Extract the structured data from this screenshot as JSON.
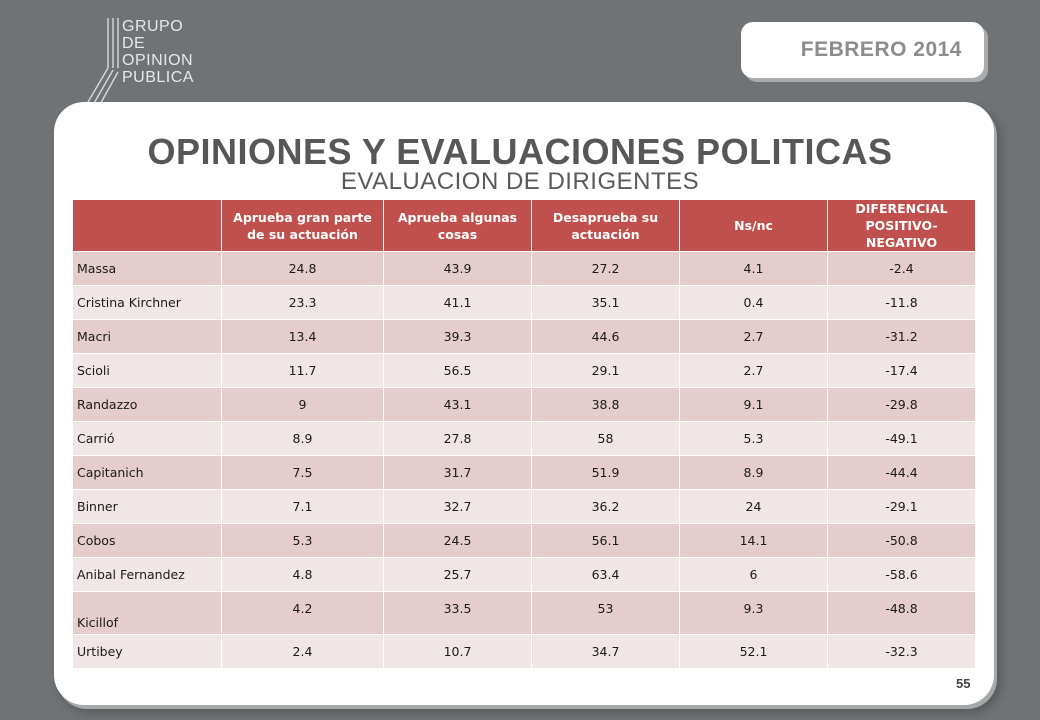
{
  "logo": {
    "lines": [
      "GRUPO",
      "DE",
      "OPINION",
      "PUBLICA"
    ]
  },
  "date_badge": "FEBRERO 2014",
  "title": "OPINIONES Y EVALUACIONES POLITICAS",
  "subtitle": "EVALUACION DE DIRIGENTES",
  "page_number": "55",
  "table": {
    "headers": [
      "",
      "Aprueba gran parte de su actuación",
      "Aprueba algunas cosas",
      "Desaprueba su actuación",
      "Ns/nc",
      "DIFERENCIAL POSITIVO-NEGATIVO"
    ],
    "rows": [
      [
        "Massa",
        "24.8",
        "43.9",
        "27.2",
        "4.1",
        "-2.4"
      ],
      [
        "Cristina Kirchner",
        "23.3",
        "41.1",
        "35.1",
        "0.4",
        "-11.8"
      ],
      [
        "Macri",
        "13.4",
        "39.3",
        "44.6",
        "2.7",
        "-31.2"
      ],
      [
        "Scioli",
        "11.7",
        "56.5",
        "29.1",
        "2.7",
        "-17.4"
      ],
      [
        "Randazzo",
        "9",
        "43.1",
        "38.8",
        "9.1",
        "-29.8"
      ],
      [
        "Carrió",
        "8.9",
        "27.8",
        "58",
        "5.3",
        "-49.1"
      ],
      [
        "Capitanich",
        "7.5",
        "31.7",
        "51.9",
        "8.9",
        "-44.4"
      ],
      [
        "Binner",
        "7.1",
        "32.7",
        "36.2",
        "24",
        "-29.1"
      ],
      [
        "Cobos",
        "5.3",
        "24.5",
        "56.1",
        "14.1",
        "-50.8"
      ],
      [
        "Anibal Fernandez",
        "4.8",
        "25.7",
        "63.4",
        "6",
        "-58.6"
      ],
      [
        "Kicillof",
        "4.2",
        "33.5",
        "53",
        "9.3",
        "-48.8"
      ],
      [
        "Urtibey",
        "2.4",
        "10.7",
        "34.7",
        "52.1",
        "-32.3"
      ]
    ]
  },
  "colors": {
    "background": "#6f7375",
    "header_red": "#c0504d",
    "row_dark": "#e6cdcd",
    "row_light": "#f1e6e6"
  }
}
